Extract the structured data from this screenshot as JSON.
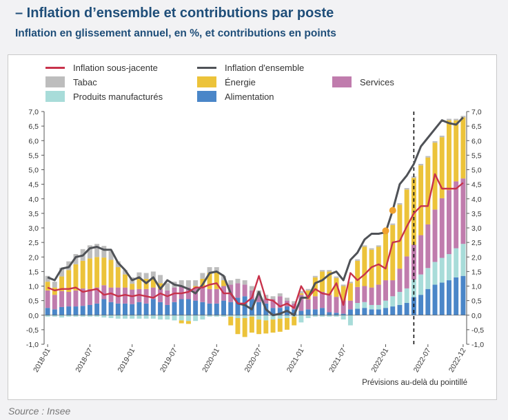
{
  "header": {
    "title": "– Inflation d’ensemble et contributions par poste",
    "subtitle": "Inflation en glissement annuel, en %, et contributions en points"
  },
  "source": "Source : Insee",
  "chart_data": {
    "type": "bar",
    "stacked": true,
    "note": "Prévisions au-delà du pointillé",
    "ylim": [
      -1.0,
      7.0
    ],
    "yticks": [
      "7,0",
      "6,5",
      "6,0",
      "5,5",
      "5,0",
      "4,5",
      "4,0",
      "3,5",
      "3,0",
      "2,5",
      "2,0",
      "1,5",
      "1,0",
      "0,5",
      "0,0",
      "-0,5",
      "-1,0"
    ],
    "xtick_labels": [
      "2018-01",
      "2018-07",
      "2019-01",
      "2019-07",
      "2020-01",
      "2020-07",
      "2021-01",
      "2021-07",
      "2022-01",
      "2022-07",
      "2022-12"
    ],
    "forecast_start": "2022-05",
    "legend": [
      {
        "name": "Inflation sous-jacente",
        "kind": "line",
        "color": "#c8324b"
      },
      {
        "name": "Inflation d'ensemble",
        "kind": "line",
        "color": "#4f5257"
      },
      {
        "name": "Services",
        "kind": "bar",
        "color": "#c07cad"
      },
      {
        "name": "Tabac",
        "kind": "bar",
        "color": "#bdbdbd"
      },
      {
        "name": "Énergie",
        "kind": "bar",
        "color": "#ecc33a"
      },
      {
        "name": "Produits manufacturés",
        "kind": "bar",
        "color": "#a8dcd9"
      },
      {
        "name": "Alimentation",
        "kind": "bar",
        "color": "#4a86c8"
      }
    ],
    "categories": [
      "2018-01",
      "2018-02",
      "2018-03",
      "2018-04",
      "2018-05",
      "2018-06",
      "2018-07",
      "2018-08",
      "2018-09",
      "2018-10",
      "2018-11",
      "2018-12",
      "2019-01",
      "2019-02",
      "2019-03",
      "2019-04",
      "2019-05",
      "2019-06",
      "2019-07",
      "2019-08",
      "2019-09",
      "2019-10",
      "2019-11",
      "2019-12",
      "2020-01",
      "2020-02",
      "2020-03",
      "2020-04",
      "2020-05",
      "2020-06",
      "2020-07",
      "2020-08",
      "2020-09",
      "2020-10",
      "2020-11",
      "2020-12",
      "2021-01",
      "2021-02",
      "2021-03",
      "2021-04",
      "2021-05",
      "2021-06",
      "2021-07",
      "2021-08",
      "2021-09",
      "2021-10",
      "2021-11",
      "2021-12",
      "2022-01",
      "2022-02",
      "2022-03",
      "2022-04",
      "2022-05",
      "2022-06",
      "2022-07",
      "2022-08",
      "2022-09",
      "2022-10",
      "2022-11",
      "2022-12"
    ],
    "series": [
      {
        "name": "Alimentation",
        "values": [
          0.25,
          0.2,
          0.28,
          0.3,
          0.3,
          0.32,
          0.35,
          0.4,
          0.55,
          0.45,
          0.4,
          0.4,
          0.38,
          0.45,
          0.4,
          0.55,
          0.45,
          0.35,
          0.45,
          0.55,
          0.55,
          0.5,
          0.45,
          0.4,
          0.4,
          0.5,
          0.45,
          0.6,
          0.65,
          0.55,
          0.45,
          0.4,
          0.25,
          0.25,
          0.3,
          0.2,
          0.15,
          0.2,
          0.2,
          0.25,
          0.1,
          0.08,
          0.05,
          0.2,
          0.22,
          0.25,
          0.2,
          0.2,
          0.25,
          0.3,
          0.35,
          0.42,
          0.62,
          0.7,
          0.9,
          1.05,
          1.12,
          1.2,
          1.3,
          1.35
        ]
      },
      {
        "name": "Produits manufacturés",
        "values": [
          -0.05,
          -0.05,
          -0.08,
          -0.05,
          -0.05,
          -0.05,
          -0.05,
          -0.05,
          -0.08,
          -0.1,
          -0.12,
          -0.12,
          -0.12,
          -0.12,
          -0.12,
          -0.12,
          -0.15,
          -0.15,
          -0.18,
          -0.18,
          -0.2,
          -0.2,
          -0.15,
          -0.05,
          -0.05,
          -0.05,
          -0.05,
          -0.1,
          -0.1,
          -0.05,
          -0.15,
          -0.18,
          -0.15,
          -0.12,
          -0.1,
          -0.05,
          -0.25,
          -0.1,
          -0.05,
          -0.05,
          -0.05,
          -0.05,
          -0.15,
          -0.35,
          0.2,
          0.2,
          0.15,
          0.15,
          0.25,
          0.35,
          0.45,
          0.5,
          0.6,
          0.7,
          0.72,
          0.78,
          0.85,
          0.9,
          1.0,
          1.1
        ]
      },
      {
        "name": "Services",
        "values": [
          0.6,
          0.5,
          0.55,
          0.5,
          0.55,
          0.6,
          0.55,
          0.55,
          0.48,
          0.5,
          0.55,
          0.55,
          0.5,
          0.45,
          0.5,
          0.4,
          0.45,
          0.5,
          0.5,
          0.45,
          0.4,
          0.45,
          0.5,
          0.5,
          0.5,
          0.5,
          0.6,
          0.5,
          0.4,
          0.3,
          0.25,
          0.15,
          0.3,
          0.4,
          0.2,
          0.2,
          0.55,
          0.35,
          0.45,
          0.55,
          0.6,
          0.55,
          0.45,
          0.3,
          0.55,
          0.55,
          0.6,
          0.7,
          0.7,
          0.55,
          0.8,
          1.1,
          1.2,
          1.35,
          1.5,
          1.8,
          2.05,
          2.2,
          2.3,
          2.25
        ]
      },
      {
        "name": "Énergie",
        "values": [
          0.3,
          0.25,
          0.5,
          0.75,
          0.9,
          0.95,
          1.05,
          1.05,
          0.95,
          0.95,
          0.7,
          0.45,
          0.2,
          0.35,
          0.35,
          0.3,
          0.2,
          0.0,
          0.0,
          -0.1,
          -0.1,
          0.05,
          0.3,
          0.55,
          0.6,
          0.2,
          -0.3,
          -0.55,
          -0.65,
          -0.55,
          -0.5,
          -0.45,
          -0.45,
          -0.45,
          -0.4,
          -0.3,
          0.05,
          0.3,
          0.65,
          0.7,
          0.8,
          0.65,
          0.5,
          0.6,
          0.9,
          1.35,
          1.3,
          1.3,
          1.6,
          1.9,
          2.2,
          2.3,
          2.3,
          2.4,
          2.3,
          2.3,
          2.1,
          2.4,
          2.1,
          2.1
        ]
      },
      {
        "name": "Tabac",
        "values": [
          0.2,
          0.2,
          0.3,
          0.3,
          0.35,
          0.4,
          0.45,
          0.45,
          0.4,
          0.3,
          0.2,
          0.15,
          0.22,
          0.22,
          0.2,
          0.25,
          0.28,
          0.25,
          0.2,
          0.2,
          0.25,
          0.2,
          0.2,
          0.2,
          0.15,
          0.15,
          0.15,
          0.15,
          0.15,
          0.15,
          0.15,
          0.15,
          0.1,
          0.1,
          0.1,
          0.08,
          0.08,
          0.05,
          0.05,
          0.05,
          0.05,
          0.05,
          0.05,
          0.05,
          0.05,
          0.05,
          0.05,
          0.05,
          0.05,
          0.05,
          0.05,
          0.05,
          0.05,
          0.05,
          0.05,
          0.05,
          0.05,
          0.05,
          0.05,
          0.05
        ]
      }
    ],
    "lines": [
      {
        "name": "Inflation d'ensemble",
        "values": [
          1.3,
          1.2,
          1.6,
          1.65,
          2.0,
          2.05,
          2.3,
          2.35,
          2.25,
          2.25,
          1.8,
          1.55,
          1.2,
          1.3,
          1.1,
          1.3,
          0.9,
          1.2,
          1.05,
          1.0,
          0.9,
          0.75,
          1.05,
          1.45,
          1.5,
          1.35,
          0.75,
          0.4,
          0.35,
          0.2,
          0.8,
          0.2,
          0.0,
          0.05,
          0.15,
          0.0,
          0.6,
          0.6,
          1.1,
          1.2,
          1.4,
          1.5,
          1.2,
          1.9,
          2.15,
          2.6,
          2.8,
          2.8,
          2.85,
          3.6,
          4.5,
          4.8,
          5.2,
          5.8,
          6.1,
          6.4,
          6.7,
          6.6,
          6.55,
          6.8
        ]
      },
      {
        "name": "Inflation sous-jacente",
        "values": [
          0.95,
          0.85,
          0.9,
          0.9,
          0.95,
          0.8,
          0.85,
          0.9,
          0.7,
          0.75,
          0.65,
          0.7,
          0.65,
          0.7,
          0.65,
          0.6,
          0.75,
          0.65,
          0.75,
          0.75,
          0.8,
          0.95,
          0.95,
          1.05,
          1.1,
          0.75,
          0.75,
          0.4,
          0.4,
          0.6,
          1.35,
          0.55,
          0.5,
          0.3,
          0.4,
          0.25,
          1.0,
          0.6,
          0.9,
          0.75,
          0.7,
          1.1,
          0.35,
          1.45,
          1.2,
          1.4,
          1.65,
          1.75,
          1.6,
          2.5,
          2.55,
          3.05,
          3.5,
          3.75,
          3.75,
          4.85,
          4.35,
          4.35,
          4.35,
          4.55
        ]
      }
    ],
    "markers": [
      {
        "series": "Inflation d'ensemble",
        "at": "2022-01",
        "value": 2.9
      },
      {
        "series": "Inflation d'ensemble",
        "at": "2022-02",
        "value": 3.6
      }
    ]
  }
}
